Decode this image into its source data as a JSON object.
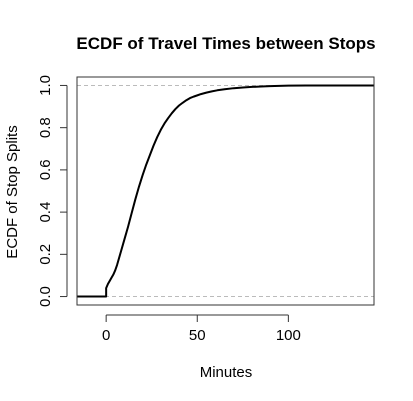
{
  "chart_data": {
    "type": "line",
    "title": "ECDF of Travel Times between Stops",
    "xlabel": "Minutes",
    "ylabel": "ECDF of Stop Splits",
    "xlim": [
      -16,
      147
    ],
    "ylim": [
      -0.04,
      1.04
    ],
    "x_ticks": [
      0,
      50,
      100
    ],
    "y_ticks": [
      0.0,
      0.2,
      0.4,
      0.6,
      0.8,
      1.0
    ],
    "x_tick_labels": [
      "0",
      "50",
      "100"
    ],
    "y_tick_labels": [
      "0.0",
      "0.2",
      "0.4",
      "0.6",
      "0.8",
      "1.0"
    ],
    "reference_lines": [
      0,
      1
    ],
    "reference_line_style": "dashed",
    "grid": false,
    "legend": "none",
    "series": [
      {
        "color": "#000000",
        "x": [
          -16,
          0,
          0,
          1,
          2,
          3,
          4,
          5,
          6,
          8,
          10,
          12,
          14,
          16,
          18,
          20,
          22,
          24,
          26,
          28,
          30,
          32,
          34,
          36,
          38,
          40,
          42,
          44,
          46,
          48,
          50,
          52,
          55,
          58,
          61,
          65,
          70,
          75,
          80,
          85,
          90,
          95,
          100,
          110,
          120,
          130,
          147
        ],
        "y": [
          0.0,
          0.0,
          0.04,
          0.06,
          0.075,
          0.09,
          0.105,
          0.125,
          0.15,
          0.21,
          0.27,
          0.33,
          0.395,
          0.46,
          0.52,
          0.575,
          0.625,
          0.67,
          0.715,
          0.755,
          0.79,
          0.82,
          0.845,
          0.868,
          0.888,
          0.905,
          0.918,
          0.93,
          0.94,
          0.947,
          0.953,
          0.959,
          0.966,
          0.972,
          0.977,
          0.982,
          0.987,
          0.99,
          0.993,
          0.995,
          0.997,
          0.998,
          0.999,
          1.0,
          1.0,
          1.0,
          1.0
        ]
      }
    ]
  }
}
